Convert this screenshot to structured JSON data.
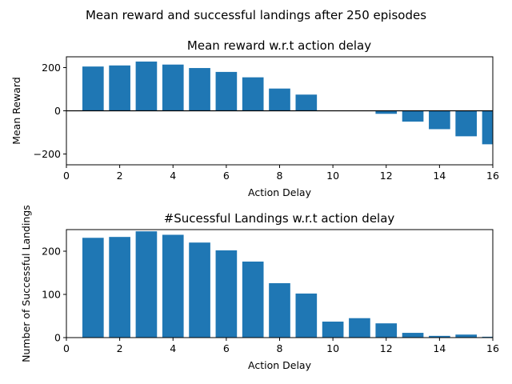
{
  "figure": {
    "suptitle": "Mean reward and successful landings after 250 episodes"
  },
  "chart_data": [
    {
      "type": "bar",
      "title": "Mean reward w.r.t action delay",
      "xlabel": "Action Delay",
      "ylabel": "Mean Reward",
      "xlim": [
        0,
        16
      ],
      "ylim": [
        -250,
        250
      ],
      "xticks": [
        0,
        2,
        4,
        6,
        8,
        10,
        12,
        14,
        16
      ],
      "yticks": [
        -200,
        0,
        200
      ],
      "zero_line": true,
      "bar_color": "#1f77b4",
      "x": [
        1,
        2,
        3,
        4,
        5,
        6,
        7,
        8,
        9,
        10,
        11,
        12,
        13,
        14,
        15,
        16
      ],
      "values": [
        205,
        210,
        228,
        214,
        198,
        180,
        155,
        103,
        75,
        0,
        0,
        -14,
        -50,
        -85,
        -118,
        -155
      ]
    },
    {
      "type": "bar",
      "title": "#Sucessful Landings w.r.t action delay",
      "xlabel": "Action Delay",
      "ylabel": "Number of Successful Landings",
      "xlim": [
        0,
        16
      ],
      "ylim": [
        0,
        250
      ],
      "xticks": [
        0,
        2,
        4,
        6,
        8,
        10,
        12,
        14,
        16
      ],
      "yticks": [
        0,
        100,
        200
      ],
      "zero_line": false,
      "bar_color": "#1f77b4",
      "x": [
        1,
        2,
        3,
        4,
        5,
        6,
        7,
        8,
        9,
        10,
        11,
        12,
        13,
        14,
        15,
        16
      ],
      "values": [
        231,
        233,
        246,
        238,
        220,
        202,
        176,
        126,
        102,
        37,
        45,
        33,
        11,
        4,
        7,
        2
      ]
    }
  ]
}
